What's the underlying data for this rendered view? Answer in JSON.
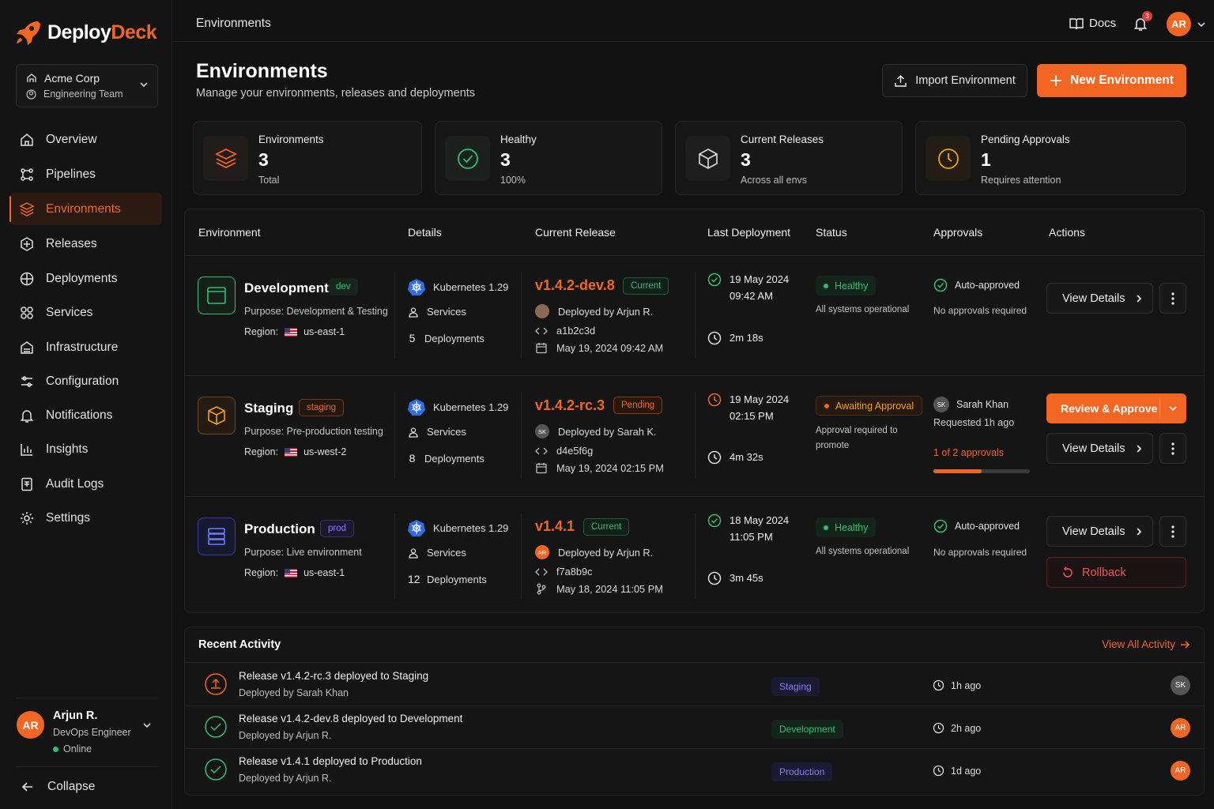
{
  "app": {
    "name_part1": "Deploy",
    "name_part2": "Deck"
  },
  "org": {
    "name": "Acme Corp",
    "team": "Engineering Team"
  },
  "nav": [
    "Overview",
    "Pipelines",
    "Environments",
    "Releases",
    "Deployments",
    "Services",
    "Infrastructure",
    "Configuration",
    "Notifications",
    "Insights",
    "Audit Logs",
    "Settings"
  ],
  "user": {
    "initials": "AR",
    "name": "Arjun R.",
    "role": "DevOps Engineer",
    "status": "Online"
  },
  "collapse": "Collapse",
  "topbar": {
    "breadcrumb": "Environments",
    "docs": "Docs",
    "notif_count": "3",
    "avatar": "AR"
  },
  "header": {
    "title": "Environments",
    "subtitle": "Manage your environments, releases and deployments",
    "import_label": "Import Environment",
    "new_label": "New Environment"
  },
  "stats": [
    {
      "label": "Environments",
      "value": "3",
      "desc": "Total"
    },
    {
      "label": "Healthy",
      "value": "3",
      "desc": "100%"
    },
    {
      "label": "Current Releases",
      "value": "3",
      "desc": "Across all envs"
    },
    {
      "label": "Pending Approvals",
      "value": "1",
      "desc": "Requires attention"
    }
  ],
  "columns": [
    "Environment",
    "Details",
    "Current Release",
    "Last Deployment",
    "Status",
    "Approvals",
    "Actions"
  ],
  "envs": [
    {
      "name": "Development",
      "tag": "dev",
      "purpose": "Purpose: Development & Testing",
      "region_label": "Region:",
      "region": "us-east-1",
      "k8s": "Kubernetes 1.29",
      "services": "Services",
      "deploy_count": "5",
      "deployments": "Deployments",
      "release": "v1.4.2-dev.8",
      "release_tag": "Current",
      "deployed_by": "Deployed by Arjun R.",
      "commit": "a1b2c3d",
      "date": "May 19, 2024 09:42 AM",
      "last_date": "19 May 2024",
      "last_time": "09:42 AM",
      "duration": "2m 18s",
      "status": "Healthy",
      "status_text": "All systems operational",
      "approval": "Auto-approved",
      "approval_text": "No approvals required",
      "view": "View Details"
    },
    {
      "name": "Staging",
      "tag": "staging",
      "purpose": "Purpose: Pre-production testing",
      "region_label": "Region:",
      "region": "us-west-2",
      "k8s": "Kubernetes 1.29",
      "services": "Services",
      "deploy_count": "8",
      "deployments": "Deployments",
      "release": "v1.4.2-rc.3",
      "release_tag": "Pending",
      "deployed_by": "Deployed by Sarah K.",
      "commit": "d4e5f6g",
      "date": "May 19, 2024 02:15 PM",
      "last_date": "19 May 2024",
      "last_time": "02:15 PM",
      "duration": "4m 32s",
      "status": "Awaiting Approval",
      "status_text": "Approval required to promote",
      "approver_initials": "SK",
      "approver": "Sarah Khan",
      "requested": "Requested 1h ago",
      "approvals_progress": "1 of 2 approvals",
      "progress_fraction": 0.5,
      "review": "Review & Approve",
      "view": "View Details"
    },
    {
      "name": "Production",
      "tag": "prod",
      "purpose": "Purpose: Live environment",
      "region_label": "Region:",
      "region": "us-east-1",
      "k8s": "Kubernetes 1.29",
      "services": "Services",
      "deploy_count": "12",
      "deployments": "Deployments",
      "release": "v1.4.1",
      "release_tag": "Current",
      "deployed_by": "Deployed by Arjun R.",
      "commit": "f7a8b9c",
      "date": "May 18, 2024 11:05 PM",
      "last_date": "18 May 2024",
      "last_time": "11:05 PM",
      "duration": "3m 45s",
      "status": "Healthy",
      "status_text": "All systems operational",
      "approval": "Auto-approved",
      "approval_text": "No approvals required",
      "view": "View Details",
      "rollback": "Rollback"
    }
  ],
  "activity": {
    "title": "Recent Activity",
    "view_all": "View All Activity",
    "items": [
      {
        "title": "Release v1.4.2-rc.3 deployed to Staging",
        "by": "Deployed by Sarah Khan",
        "env": "Staging",
        "time": "1h ago",
        "initials": "SK"
      },
      {
        "title": "Release v1.4.2-dev.8 deployed to Development",
        "by": "Deployed by Arjun R.",
        "env": "Development",
        "time": "2h ago",
        "initials": "AR"
      },
      {
        "title": "Release v1.4.1 deployed to Production",
        "by": "Deployed by Arjun R.",
        "env": "Production",
        "time": "1d ago",
        "initials": "AR"
      }
    ]
  },
  "colors": {
    "accent": "#f26522",
    "healthy": "#2fbf71",
    "warning": "#f59e0b",
    "prod": "#8b7cf6"
  }
}
